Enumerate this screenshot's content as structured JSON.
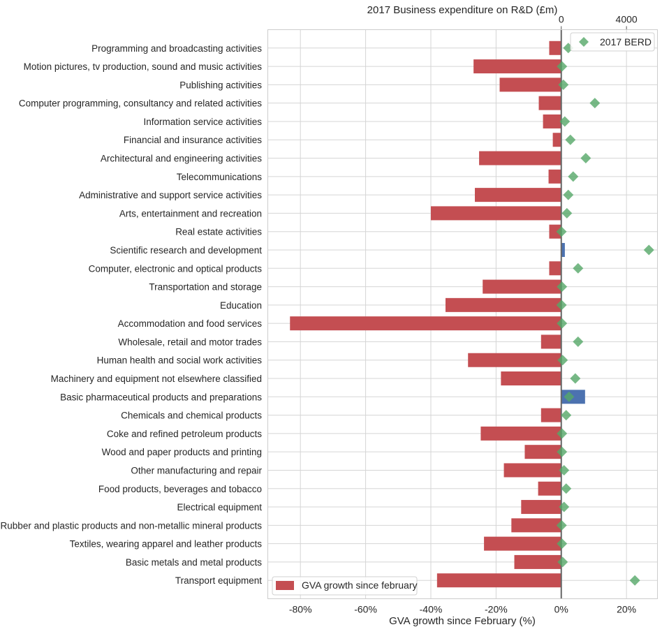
{
  "chart_data": {
    "type": "bar",
    "orientation": "horizontal",
    "title": "",
    "xlabel": "GVA growth since February (%)",
    "x2label": "2017 Business expenditure on R&D (£m)",
    "xlim": [
      -90,
      29.5
    ],
    "x2lim": [
      -18000,
      5900
    ],
    "xticks": [
      "-80%",
      "-60%",
      "-40%",
      "-20%",
      "0%",
      "20%"
    ],
    "xtick_values": [
      -80,
      -60,
      -40,
      -20,
      0,
      20
    ],
    "x2ticks": [
      "0",
      "4000"
    ],
    "x2tick_values": [
      0,
      4000
    ],
    "grid": true,
    "categories": [
      "Programming and broadcasting activities",
      "Motion pictures, tv production, sound and music activities",
      "Publishing activities",
      "Computer programming, consultancy and related activities",
      "Information service activities",
      "Financial and insurance activities",
      "Architectural and engineering activities",
      "Telecommunications",
      "Administrative and support service activities",
      "Arts, entertainment and recreation",
      "Real estate activities",
      "Scientific research and development",
      "Computer, electronic and optical products",
      "Transportation and storage",
      "Education",
      "Accommodation and food services",
      "Wholesale, retail and motor trades",
      "Human health and social work activities",
      "Machinery and equipment not elsewhere classified",
      "Basic pharmaceutical products and preparations",
      "Chemicals and chemical products",
      "Coke and refined petroleum products",
      "Wood and paper products and printing",
      "Other manufacturing and repair",
      "Food products, beverages and tobacco",
      "Electrical equipment",
      "Rubber and plastic products and non-metallic mineral products",
      "Textiles, wearing apparel and leather products",
      "Basic metals and metal products",
      "Transport equipment"
    ],
    "series": [
      {
        "name": "GVA growth since february",
        "type": "bar",
        "axis": "bottom",
        "values": [
          -3.7,
          -26.9,
          -18.9,
          -6.9,
          -5.6,
          -2.6,
          -25.2,
          -3.9,
          -26.5,
          -40.0,
          -3.7,
          1.1,
          -3.7,
          -24.1,
          -35.5,
          -83.2,
          -6.2,
          -28.6,
          -18.5,
          7.3,
          -6.2,
          -24.7,
          -11.2,
          -17.6,
          -7.1,
          -12.3,
          -15.3,
          -23.7,
          -14.4,
          -38.1
        ],
        "color_negative": "#c44e52",
        "color_positive": "#4c72b0",
        "legend": "bottom-left"
      },
      {
        "name": "2017 BERD",
        "type": "scatter",
        "marker": "diamond",
        "axis": "top",
        "values": [
          430,
          43,
          130,
          2060,
          215,
          560,
          1505,
          730,
          430,
          345,
          10,
          5375,
          1030,
          40,
          15,
          40,
          1030,
          85,
          860,
          475,
          300,
          40,
          40,
          170,
          300,
          170,
          20,
          40,
          85,
          4515
        ],
        "color": "#55a868",
        "legend": "top-right"
      }
    ]
  }
}
